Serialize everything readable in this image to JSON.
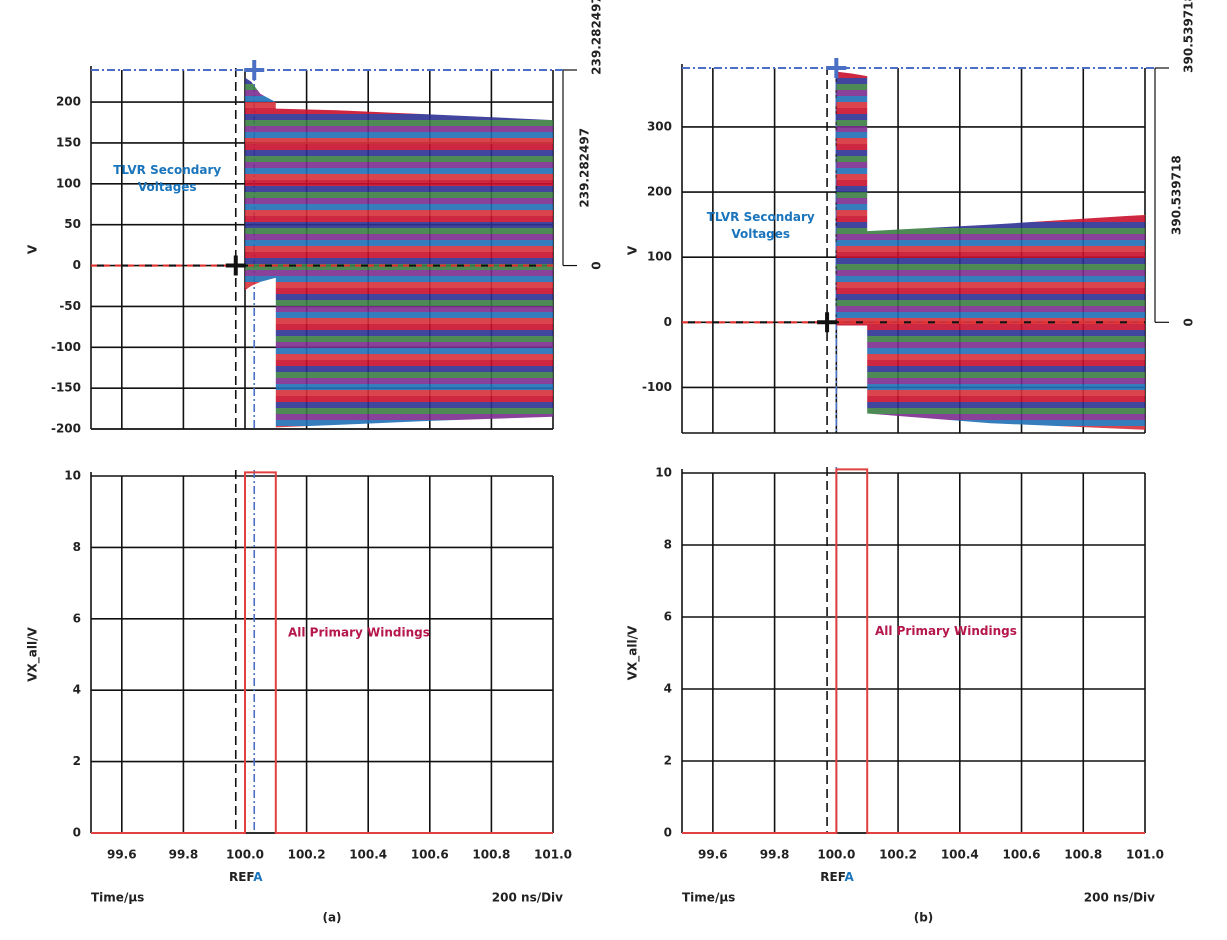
{
  "chart_data": [
    {
      "type": "band",
      "ylabel": "V",
      "xlim": [
        99.5,
        101.0
      ],
      "ylim": [
        -200,
        239.282497
      ],
      "xticks": [
        99.6,
        99.8,
        100.0,
        100.2,
        100.4,
        100.6,
        100.8,
        101.0
      ],
      "yticks": [
        -200,
        -150,
        -100,
        -50,
        0,
        50,
        100,
        150,
        200
      ],
      "show_xtick_labels": false,
      "grid": true,
      "annotation": [
        "TLVR Secondary",
        "Voltages"
      ],
      "annotation_color": "#1b75bc",
      "envelope": {
        "x": [
          100.0,
          100.02,
          100.05,
          100.1,
          100.1,
          100.3,
          100.6,
          101.0
        ],
        "upper": [
          230,
          225,
          210,
          200,
          192,
          190,
          185,
          178
        ],
        "lower": [
          -30,
          -25,
          -20,
          -15,
          -198,
          -195,
          -190,
          -185
        ],
        "colors": [
          "#c8102e",
          "#2e3192",
          "#3a7d44",
          "#7b2d8e",
          "#1f6fb5",
          "#d6303a"
        ]
      },
      "cursors": {
        "x_ref": 99.97,
        "x_a": 100.03
      },
      "measure_ticks": [
        0,
        239.282497
      ],
      "measure_delta": 239.282497
    },
    {
      "type": "line",
      "ylabel": "VX_all/V",
      "xlim": [
        99.5,
        101.0
      ],
      "ylim": [
        0,
        10
      ],
      "xticks": [
        99.6,
        99.8,
        {
          "value": 100.0,
          "label": "100.0"
        },
        100.2,
        100.4,
        100.6,
        100.8,
        {
          "value": 101.0,
          "label": "101.0"
        }
      ],
      "yticks": [
        0,
        2,
        4,
        6,
        8,
        10
      ],
      "show_xtick_labels": true,
      "grid": true,
      "x": [
        99.5,
        100.0,
        100.0,
        100.1,
        100.1,
        101.0
      ],
      "values": [
        0,
        0,
        10.1,
        10.1,
        0,
        0
      ],
      "color": "#e0403f",
      "annotation": [
        "All Primary Windings"
      ],
      "annotation_color": "#b5174a",
      "cursors": {
        "x_ref": 99.97,
        "x_a": 100.03
      },
      "xlabel": "Time/μs",
      "x_scale_label": "200 ns/Div",
      "ref_label": "REF",
      "ref_marker": "A",
      "caption": "(a)"
    },
    {
      "type": "band",
      "ylabel": "V",
      "xlim": [
        99.5,
        101.0
      ],
      "ylim": [
        -170,
        390.539718
      ],
      "xticks": [
        99.6,
        99.8,
        100.0,
        100.2,
        100.4,
        100.6,
        100.8,
        101.0
      ],
      "yticks": [
        -100,
        0,
        100,
        200,
        300
      ],
      "show_xtick_labels": false,
      "grid": true,
      "annotation": [
        "TLVR Secondary",
        "Voltages"
      ],
      "annotation_color": "#1b75bc",
      "envelope": {
        "x": [
          100.0,
          100.05,
          100.1,
          100.1,
          100.5,
          101.0
        ],
        "upper": [
          385,
          382,
          378,
          140,
          150,
          165
        ],
        "lower": [
          -5,
          -5,
          -5,
          -140,
          -155,
          -165
        ],
        "colors": [
          "#c8102e",
          "#2e3192",
          "#3a7d44",
          "#7b2d8e",
          "#1f6fb5",
          "#d6303a"
        ]
      },
      "cursors": {
        "x_ref": 99.97,
        "x_a": 100.0
      },
      "measure_ticks": [
        0,
        390.539718
      ],
      "measure_delta": 390.539718
    },
    {
      "type": "line",
      "ylabel": "VX_all/V",
      "xlim": [
        99.5,
        101.0
      ],
      "ylim": [
        0,
        10
      ],
      "xticks": [
        99.6,
        99.8,
        {
          "value": 100.0,
          "label": "100.0"
        },
        100.2,
        100.4,
        100.6,
        100.8,
        {
          "value": 101.0,
          "label": "101.0"
        }
      ],
      "yticks": [
        0,
        2,
        4,
        6,
        8,
        10
      ],
      "show_xtick_labels": true,
      "grid": true,
      "x": [
        99.5,
        100.0,
        100.0,
        100.1,
        100.1,
        101.0
      ],
      "values": [
        0,
        0,
        10.1,
        10.1,
        0,
        0
      ],
      "color": "#e0403f",
      "annotation": [
        "All Primary Windings"
      ],
      "annotation_color": "#b5174a",
      "cursors": {
        "x_ref": 99.97,
        "x_a": 100.0
      },
      "xlabel": "Time/μs",
      "x_scale_label": "200 ns/Div",
      "ref_label": "REF",
      "ref_marker": "A",
      "caption": "(b)"
    }
  ]
}
